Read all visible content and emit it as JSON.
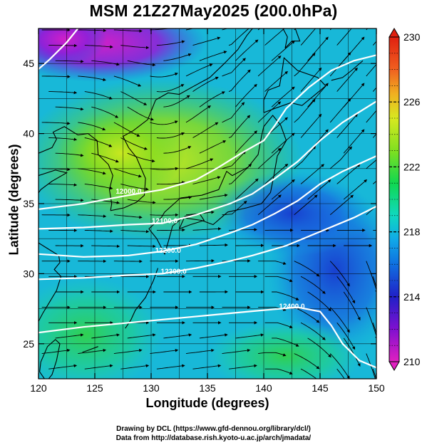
{
  "title": "MSM 21Z27May2025 (200.0hPa)",
  "axes": {
    "xlabel": "Longitude (degrees)",
    "ylabel": "Latitude  (degrees)",
    "x_ticks": [
      120,
      125,
      130,
      135,
      140,
      145,
      150
    ],
    "y_ticks": [
      25,
      30,
      35,
      40,
      45
    ],
    "xlim": [
      120,
      150
    ],
    "ylim": [
      22.5,
      47.5
    ]
  },
  "colorbar": {
    "min": 210,
    "max": 230,
    "labels": [
      230,
      226,
      222,
      218,
      214,
      210
    ],
    "stops": [
      {
        "v": 210,
        "color": "#e020c0"
      },
      {
        "v": 212,
        "color": "#8010d0"
      },
      {
        "v": 214,
        "color": "#2020c8"
      },
      {
        "v": 216,
        "color": "#1070e0"
      },
      {
        "v": 217.5,
        "color": "#10a8e8"
      },
      {
        "v": 219,
        "color": "#10d8c0"
      },
      {
        "v": 221,
        "color": "#10d850"
      },
      {
        "v": 223,
        "color": "#80e020"
      },
      {
        "v": 225,
        "color": "#d8e820"
      },
      {
        "v": 226.5,
        "color": "#f0b020"
      },
      {
        "v": 228,
        "color": "#f06020"
      },
      {
        "v": 230,
        "color": "#e02010"
      }
    ]
  },
  "contours": [
    {
      "label": "12000.0",
      "lon": 128.0,
      "lat": 35.7,
      "points": [
        [
          120,
          34.6
        ],
        [
          124,
          35.0
        ],
        [
          128,
          35.6
        ],
        [
          131,
          36.0
        ],
        [
          134,
          36.7
        ],
        [
          136,
          37.6
        ],
        [
          138,
          38.6
        ],
        [
          140,
          39.5
        ],
        [
          141,
          40.6
        ],
        [
          142,
          41.8
        ],
        [
          144,
          43.3
        ],
        [
          146,
          44.5
        ],
        [
          148,
          45.2
        ],
        [
          150,
          45.6
        ]
      ]
    },
    {
      "label": "12100.0",
      "lon": 131.2,
      "lat": 33.6,
      "points": [
        [
          120,
          33.2
        ],
        [
          124,
          33.3
        ],
        [
          128,
          33.5
        ],
        [
          131,
          33.6
        ],
        [
          134,
          34.2
        ],
        [
          137,
          35.0
        ],
        [
          139,
          35.7
        ],
        [
          141,
          36.8
        ],
        [
          143,
          38.0
        ],
        [
          145,
          39.5
        ],
        [
          147,
          40.8
        ],
        [
          150,
          42.3
        ]
      ]
    },
    {
      "label": "12200.0",
      "lon": 131.5,
      "lat": 31.5,
      "points": [
        [
          120,
          31.4
        ],
        [
          124,
          31.2
        ],
        [
          128,
          31.3
        ],
        [
          131,
          31.6
        ],
        [
          134,
          32.1
        ],
        [
          137,
          32.9
        ],
        [
          139,
          33.5
        ],
        [
          141,
          34.3
        ],
        [
          143,
          35.2
        ],
        [
          145,
          36.4
        ],
        [
          147,
          37.3
        ],
        [
          150,
          38.4
        ]
      ]
    },
    {
      "label": "12300.0",
      "lon": 132.0,
      "lat": 30.0,
      "points": [
        [
          120,
          29.6
        ],
        [
          124,
          29.7
        ],
        [
          128,
          29.9
        ],
        [
          131,
          30.0
        ],
        [
          134,
          30.4
        ],
        [
          137,
          30.9
        ],
        [
          139,
          31.3
        ],
        [
          142,
          32.0
        ],
        [
          145,
          33.0
        ],
        [
          148,
          34.0
        ],
        [
          150,
          34.8
        ]
      ]
    },
    {
      "label": "12400.0",
      "lon": 142.5,
      "lat": 27.5,
      "points": [
        [
          120,
          25.8
        ],
        [
          124,
          26.2
        ],
        [
          128,
          26.5
        ],
        [
          132,
          26.8
        ],
        [
          136,
          27.1
        ],
        [
          140,
          27.4
        ],
        [
          143,
          27.6
        ],
        [
          145,
          27.3
        ],
        [
          146,
          26.3
        ],
        [
          147,
          25.0
        ],
        [
          148.5,
          23.8
        ],
        [
          150,
          23.3
        ]
      ]
    },
    {
      "label": "",
      "lon": 0,
      "lat": 0,
      "points": [
        [
          123.5,
          47.5
        ],
        [
          122.5,
          46.5
        ],
        [
          121,
          45.3
        ],
        [
          120,
          44.6
        ]
      ]
    }
  ],
  "credits": {
    "line1": "Drawing by DCL (https://www.gfd-dennou.org/library/dcl/)",
    "line2": "Data from http://database.rish.kyoto-u.ac.jp/arch/jmadata/"
  }
}
